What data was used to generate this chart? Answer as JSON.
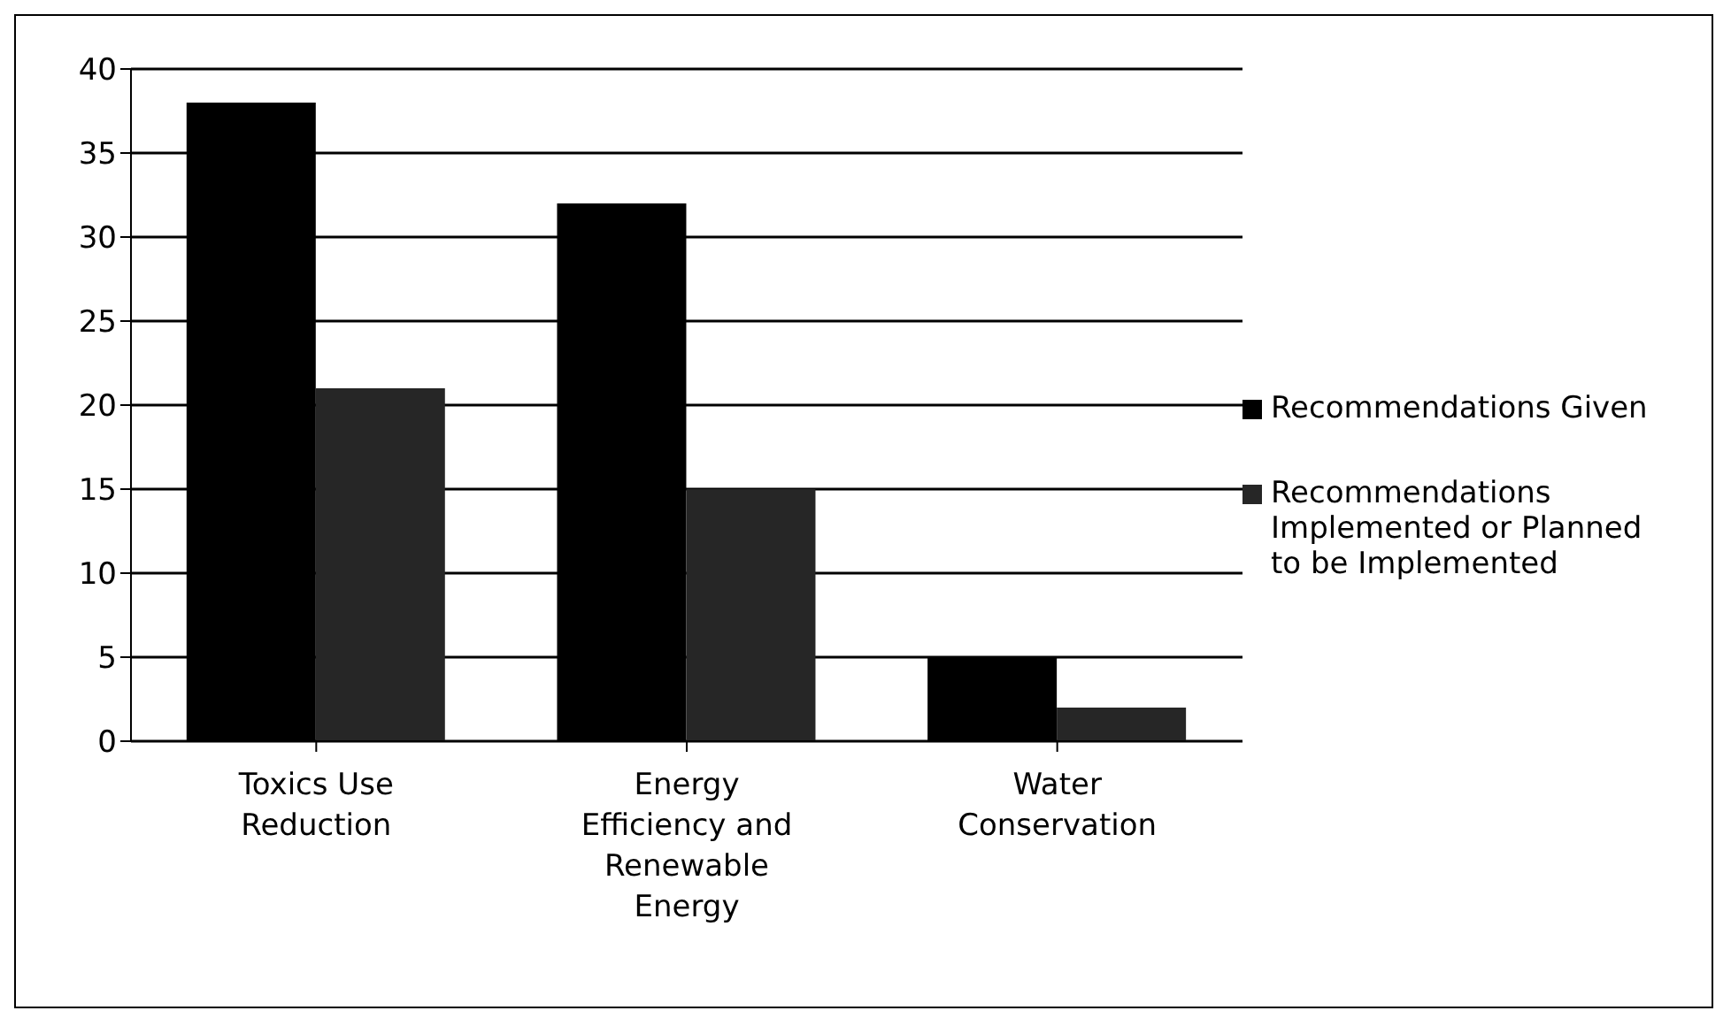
{
  "chart_data": {
    "type": "bar",
    "categories": [
      "Toxics Use Reduction",
      "Energy Efficiency and Renewable Energy",
      "Water Conservation"
    ],
    "series": [
      {
        "name": "Recommendations Given",
        "color": "#000000",
        "values": [
          38,
          32,
          5
        ]
      },
      {
        "name": "Recommendations Implemented or Planned to be Implemented",
        "color": "#262626",
        "values": [
          21,
          15,
          2
        ]
      }
    ],
    "ylim": [
      0,
      40
    ],
    "yticks": [
      0,
      5,
      10,
      15,
      20,
      25,
      30,
      35,
      40
    ],
    "grid": "y",
    "legend": "right"
  }
}
